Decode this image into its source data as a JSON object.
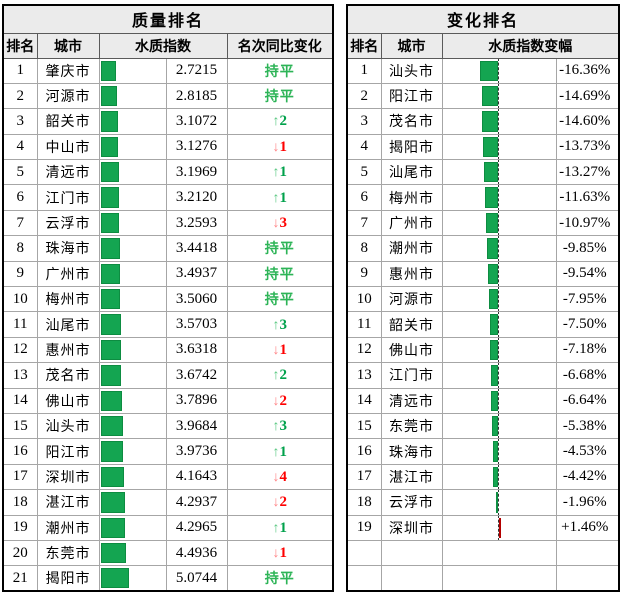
{
  "colors": {
    "bar_green": "#14a551",
    "bar_green_border": "#0d8c41",
    "bar_red": "#fe0000",
    "bar_red_border": "#b30000",
    "flat_green": "#2db457",
    "up_arrow_green": "#57c77f",
    "up_num_green": "#00a14b",
    "down_arrow_red": "#ff8285",
    "down_num_red": "#fe0000",
    "header_bg": "#ebebeb",
    "grid_line": "#a6a6a6",
    "outer_border": "#000000"
  },
  "chart_data": [
    {
      "type": "table",
      "title": "质量排名",
      "columns": {
        "rank": "排名",
        "city": "城市",
        "index": "水质指数",
        "change": "名次同比变化"
      },
      "bar_style": "green left-anchored data bar proportional to index value",
      "rows": [
        {
          "rank": "1",
          "city": "肇庆市",
          "index": "2.7215",
          "index_value": 2.7215,
          "change": {
            "dir": "flat",
            "label": "持平"
          }
        },
        {
          "rank": "2",
          "city": "河源市",
          "index": "2.8185",
          "index_value": 2.8185,
          "change": {
            "dir": "flat",
            "label": "持平"
          }
        },
        {
          "rank": "3",
          "city": "韶关市",
          "index": "3.1072",
          "index_value": 3.1072,
          "change": {
            "dir": "up",
            "arrow": "↑",
            "num": "2"
          }
        },
        {
          "rank": "4",
          "city": "中山市",
          "index": "3.1276",
          "index_value": 3.1276,
          "change": {
            "dir": "down",
            "arrow": "↓",
            "num": "1"
          }
        },
        {
          "rank": "5",
          "city": "清远市",
          "index": "3.1969",
          "index_value": 3.1969,
          "change": {
            "dir": "up",
            "arrow": "↑",
            "num": "1"
          }
        },
        {
          "rank": "6",
          "city": "江门市",
          "index": "3.2120",
          "index_value": 3.212,
          "change": {
            "dir": "up",
            "arrow": "↑",
            "num": "1"
          }
        },
        {
          "rank": "7",
          "city": "云浮市",
          "index": "3.2593",
          "index_value": 3.2593,
          "change": {
            "dir": "down",
            "arrow": "↓",
            "num": "3"
          }
        },
        {
          "rank": "8",
          "city": "珠海市",
          "index": "3.4418",
          "index_value": 3.4418,
          "change": {
            "dir": "flat",
            "label": "持平"
          }
        },
        {
          "rank": "9",
          "city": "广州市",
          "index": "3.4937",
          "index_value": 3.4937,
          "change": {
            "dir": "flat",
            "label": "持平"
          }
        },
        {
          "rank": "10",
          "city": "梅州市",
          "index": "3.5060",
          "index_value": 3.506,
          "change": {
            "dir": "flat",
            "label": "持平"
          }
        },
        {
          "rank": "11",
          "city": "汕尾市",
          "index": "3.5703",
          "index_value": 3.5703,
          "change": {
            "dir": "up",
            "arrow": "↑",
            "num": "3"
          }
        },
        {
          "rank": "12",
          "city": "惠州市",
          "index": "3.6318",
          "index_value": 3.6318,
          "change": {
            "dir": "down",
            "arrow": "↓",
            "num": "1"
          }
        },
        {
          "rank": "13",
          "city": "茂名市",
          "index": "3.6742",
          "index_value": 3.6742,
          "change": {
            "dir": "up",
            "arrow": "↑",
            "num": "2"
          }
        },
        {
          "rank": "14",
          "city": "佛山市",
          "index": "3.7896",
          "index_value": 3.7896,
          "change": {
            "dir": "down",
            "arrow": "↓",
            "num": "2"
          }
        },
        {
          "rank": "15",
          "city": "汕头市",
          "index": "3.9684",
          "index_value": 3.9684,
          "change": {
            "dir": "up",
            "arrow": "↑",
            "num": "3"
          }
        },
        {
          "rank": "16",
          "city": "阳江市",
          "index": "3.9736",
          "index_value": 3.9736,
          "change": {
            "dir": "up",
            "arrow": "↑",
            "num": "1"
          }
        },
        {
          "rank": "17",
          "city": "深圳市",
          "index": "4.1643",
          "index_value": 4.1643,
          "change": {
            "dir": "down",
            "arrow": "↓",
            "num": "4"
          }
        },
        {
          "rank": "18",
          "city": "湛江市",
          "index": "4.2937",
          "index_value": 4.2937,
          "change": {
            "dir": "down",
            "arrow": "↓",
            "num": "2"
          }
        },
        {
          "rank": "19",
          "city": "潮州市",
          "index": "4.2965",
          "index_value": 4.2965,
          "change": {
            "dir": "up",
            "arrow": "↑",
            "num": "1"
          }
        },
        {
          "rank": "20",
          "city": "东莞市",
          "index": "4.4936",
          "index_value": 4.4936,
          "change": {
            "dir": "down",
            "arrow": "↓",
            "num": "1"
          }
        },
        {
          "rank": "21",
          "city": "揭阳市",
          "index": "5.0744",
          "index_value": 5.0744,
          "change": {
            "dir": "flat",
            "label": "持平"
          }
        }
      ]
    },
    {
      "type": "table",
      "title": "变化排名",
      "columns": {
        "rank": "排名",
        "city": "城市",
        "delta": "水质指数变幅"
      },
      "bar_style": "bars anchored to dashed center axis: negative green to left, positive red to right",
      "empty_rows": 2,
      "rows": [
        {
          "rank": "1",
          "city": "汕头市",
          "pct": "-16.36%",
          "pct_value": -16.36
        },
        {
          "rank": "2",
          "city": "阳江市",
          "pct": "-14.69%",
          "pct_value": -14.69
        },
        {
          "rank": "3",
          "city": "茂名市",
          "pct": "-14.60%",
          "pct_value": -14.6
        },
        {
          "rank": "4",
          "city": "揭阳市",
          "pct": "-13.73%",
          "pct_value": -13.73
        },
        {
          "rank": "5",
          "city": "汕尾市",
          "pct": "-13.27%",
          "pct_value": -13.27
        },
        {
          "rank": "6",
          "city": "梅州市",
          "pct": "-11.63%",
          "pct_value": -11.63
        },
        {
          "rank": "7",
          "city": "广州市",
          "pct": "-10.97%",
          "pct_value": -10.97
        },
        {
          "rank": "8",
          "city": "潮州市",
          "pct": "-9.85%",
          "pct_value": -9.85
        },
        {
          "rank": "9",
          "city": "惠州市",
          "pct": "-9.54%",
          "pct_value": -9.54
        },
        {
          "rank": "10",
          "city": "河源市",
          "pct": "-7.95%",
          "pct_value": -7.95
        },
        {
          "rank": "11",
          "city": "韶关市",
          "pct": "-7.50%",
          "pct_value": -7.5
        },
        {
          "rank": "12",
          "city": "佛山市",
          "pct": "-7.18%",
          "pct_value": -7.18
        },
        {
          "rank": "13",
          "city": "江门市",
          "pct": "-6.68%",
          "pct_value": -6.68
        },
        {
          "rank": "14",
          "city": "清远市",
          "pct": "-6.64%",
          "pct_value": -6.64
        },
        {
          "rank": "15",
          "city": "东莞市",
          "pct": "-5.38%",
          "pct_value": -5.38
        },
        {
          "rank": "16",
          "city": "珠海市",
          "pct": "-4.53%",
          "pct_value": -4.53
        },
        {
          "rank": "17",
          "city": "湛江市",
          "pct": "-4.42%",
          "pct_value": -4.42
        },
        {
          "rank": "18",
          "city": "云浮市",
          "pct": "-1.96%",
          "pct_value": -1.96
        },
        {
          "rank": "19",
          "city": "深圳市",
          "pct": "+1.46%",
          "pct_value": 1.46
        }
      ]
    }
  ]
}
